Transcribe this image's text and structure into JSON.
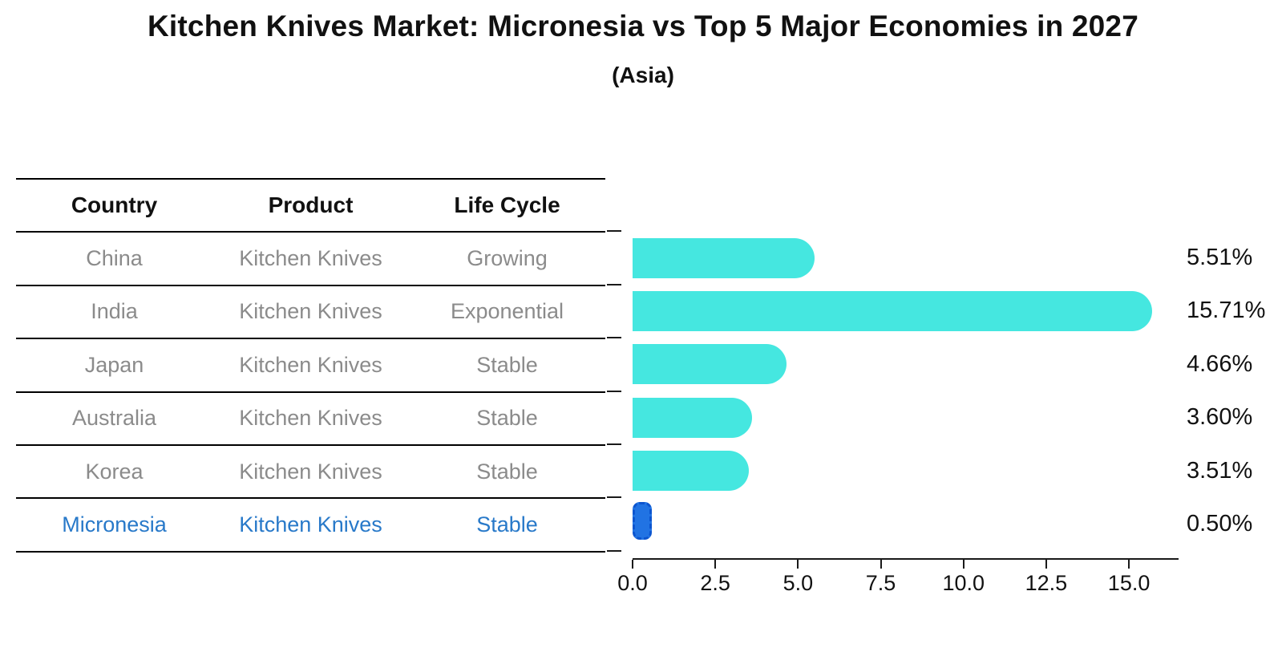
{
  "title": "Kitchen Knives Market: Micronesia vs Top 5 Major Economies in 2027",
  "subtitle": "(Asia)",
  "colors": {
    "bar_default": "#45e7e0",
    "bar_highlight": "#2173e3",
    "bar_highlight_border": "#0c55cf",
    "highlight_text": "#2879c9",
    "table_text": "#8b8b8b"
  },
  "table": {
    "headers": [
      "Country",
      "Product",
      "Life Cycle"
    ],
    "rows": [
      {
        "country": "China",
        "product": "Kitchen Knives",
        "life_cycle": "Growing",
        "highlight": false
      },
      {
        "country": "India",
        "product": "Kitchen Knives",
        "life_cycle": "Exponential",
        "highlight": false
      },
      {
        "country": "Japan",
        "product": "Kitchen Knives",
        "life_cycle": "Stable",
        "highlight": false
      },
      {
        "country": "Australia",
        "product": "Kitchen Knives",
        "life_cycle": "Stable",
        "highlight": false
      },
      {
        "country": "Korea",
        "product": "Kitchen Knives",
        "life_cycle": "Stable",
        "highlight": false
      },
      {
        "country": "Micronesia",
        "product": "Kitchen Knives",
        "life_cycle": "Stable",
        "highlight": true
      }
    ]
  },
  "chart_data": {
    "type": "bar",
    "orientation": "horizontal",
    "title": "Kitchen Knives Market: Micronesia vs Top 5 Major Economies in 2027 (Asia)",
    "categories": [
      "China",
      "India",
      "Japan",
      "Australia",
      "Korea",
      "Micronesia"
    ],
    "values": [
      5.51,
      15.71,
      4.66,
      3.6,
      3.51,
      0.5
    ],
    "value_labels": [
      "5.51%",
      "15.71%",
      "4.66%",
      "3.60%",
      "3.51%",
      "0.50%"
    ],
    "unit": "%",
    "xlim": [
      0,
      16.5
    ],
    "xtick_values": [
      0.0,
      2.5,
      5.0,
      7.5,
      10.0,
      12.5,
      15.0
    ],
    "xtick_labels": [
      "0.0",
      "2.5",
      "5.0",
      "7.5",
      "10.0",
      "12.5",
      "15.0"
    ],
    "highlight_index": 5,
    "grid": false,
    "legend": false
  }
}
